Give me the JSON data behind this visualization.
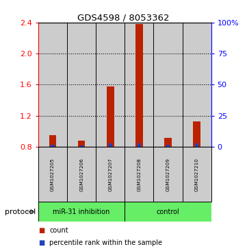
{
  "title": "GDS4598 / 8053362",
  "samples": [
    "GSM1027205",
    "GSM1027206",
    "GSM1027207",
    "GSM1027208",
    "GSM1027209",
    "GSM1027210"
  ],
  "red_values": [
    0.95,
    0.88,
    1.58,
    2.38,
    0.92,
    1.13
  ],
  "blue_pct": [
    2,
    1,
    3,
    3,
    2,
    3
  ],
  "ylim_left": [
    0.8,
    2.4
  ],
  "ylim_right": [
    0,
    100
  ],
  "yticks_left": [
    0.8,
    1.2,
    1.6,
    2.0,
    2.4
  ],
  "yticks_right": [
    0,
    25,
    50,
    75,
    100
  ],
  "yticks_right_labels": [
    "0",
    "25",
    "50",
    "75",
    "100%"
  ],
  "red_bar_width": 0.25,
  "blue_bar_width": 0.12,
  "bar_color_red": "#bb2200",
  "bar_color_blue": "#2244bb",
  "bg_color": "#cccccc",
  "green_color": "#66ee66",
  "protocol_label": "protocol",
  "group1_label": "miR-31 inhibition",
  "group2_label": "control",
  "legend_count": "count",
  "legend_pct": "percentile rank within the sample",
  "grid_lines": [
    1.2,
    1.6,
    2.0
  ],
  "n_cols": 6,
  "group1_cols": 3,
  "group2_cols": 3
}
